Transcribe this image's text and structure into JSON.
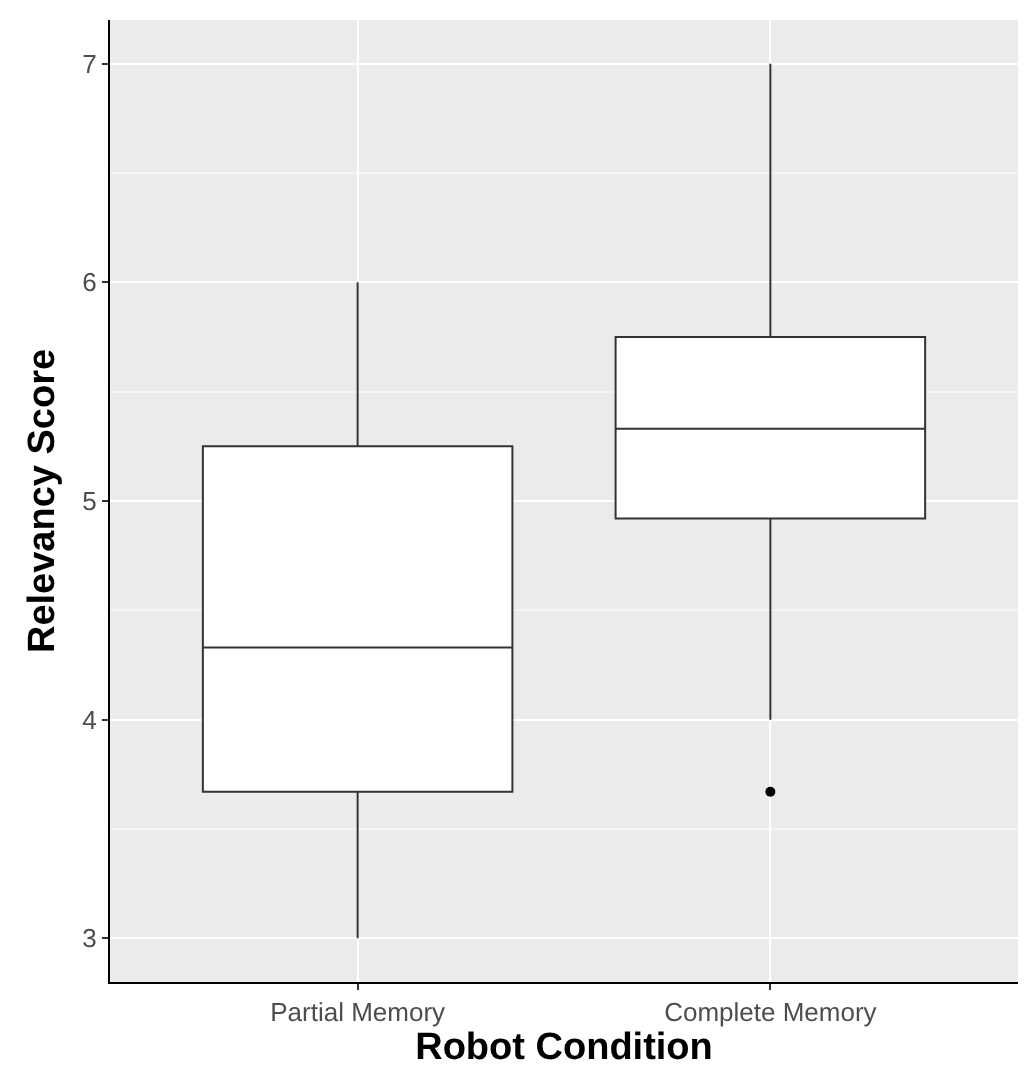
{
  "chart_data": {
    "type": "box",
    "xlabel": "Robot Condition",
    "ylabel": "Relevancy Score",
    "categories": [
      "Partial Memory",
      "Complete Memory"
    ],
    "boxes": [
      {
        "low": 3,
        "q1": 3.67,
        "median": 4.33,
        "q3": 5.25,
        "high": 6
      },
      {
        "low": 4,
        "q1": 4.92,
        "median": 5.33,
        "q3": 5.75,
        "high": 7,
        "outliers": [
          3.67
        ]
      }
    ],
    "ylim": [
      2.8,
      7.2
    ],
    "yticks": [
      3,
      4,
      5,
      6,
      7
    ],
    "grid": true
  }
}
